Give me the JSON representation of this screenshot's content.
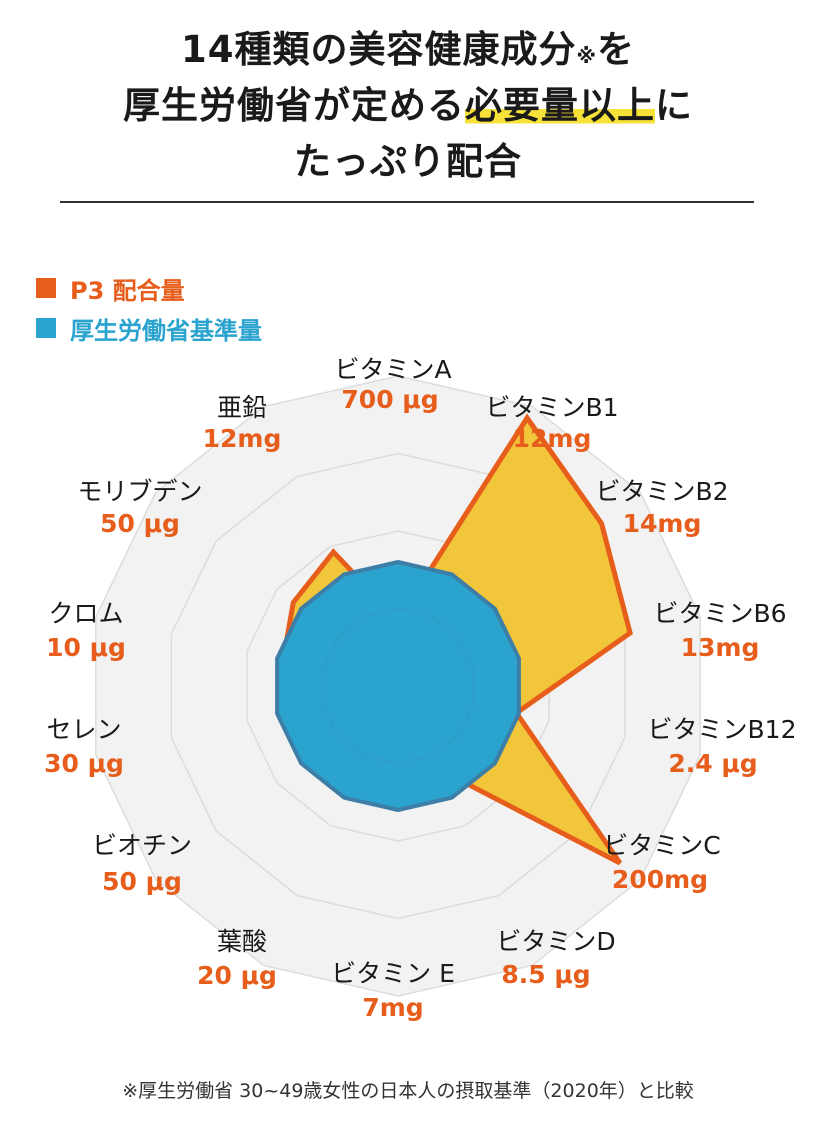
{
  "headline": {
    "line1_main": "14種類の美容健康成分",
    "line1_mark": "※",
    "line1_tail": "を",
    "line2_main": "厚生労働省が定める",
    "line2_highlight": "必要量以上",
    "line2_tail": "に",
    "line3": "たっぷり配合"
  },
  "legend": {
    "p3": "P3 配合量",
    "standard": "厚生労働省基準量"
  },
  "colors": {
    "p3_stroke": "#e75d1b",
    "p3_fill": "#f2c63a",
    "standard_fill": "#2aa3cf",
    "standard_stroke": "#3d7ea6",
    "grid_fill": "#f2f2f2",
    "value_text": "#e75d1b"
  },
  "chart_data": {
    "type": "radar",
    "axes": [
      {
        "name": "ビタミンA",
        "amount": "700 μg"
      },
      {
        "name": "ビタミンB1",
        "amount": "12mg"
      },
      {
        "name": "ビタミンB2",
        "amount": "14mg"
      },
      {
        "name": "ビタミンB6",
        "amount": "13mg"
      },
      {
        "name": "ビタミンB12",
        "amount": "2.4 μg"
      },
      {
        "name": "ビタミンC",
        "amount": "200mg"
      },
      {
        "name": "ビタミンD",
        "amount": "8.5 μg"
      },
      {
        "name": "ビタミン E",
        "amount": "7mg"
      },
      {
        "name": "葉酸",
        "amount": "20 μg"
      },
      {
        "name": "ビオチン",
        "amount": "50 μg"
      },
      {
        "name": "セレン",
        "amount": "30 μg"
      },
      {
        "name": "クロム",
        "amount": "10 μg"
      },
      {
        "name": "モリブデン",
        "amount": "50 μg"
      },
      {
        "name": "亜鉛",
        "amount": "12mg"
      }
    ],
    "series": [
      {
        "name": "P3 配合量",
        "values": [
          0.53,
          2.4,
          2.1,
          1.92,
          0.98,
          2.29,
          0.74,
          0.78,
          0.7,
          0.86,
          0.9,
          0.95,
          1.08,
          1.2
        ]
      },
      {
        "name": "厚生労働省基準量",
        "values": [
          1,
          1,
          1,
          1,
          1,
          1,
          1,
          1,
          1,
          1,
          1,
          1,
          1,
          1
        ]
      }
    ],
    "range": [
      0,
      2.5
    ],
    "grid_rings": 4
  },
  "footnote": "※厚生労働省 30~49歳女性の日本人の摂取基準（2020年）と比較"
}
